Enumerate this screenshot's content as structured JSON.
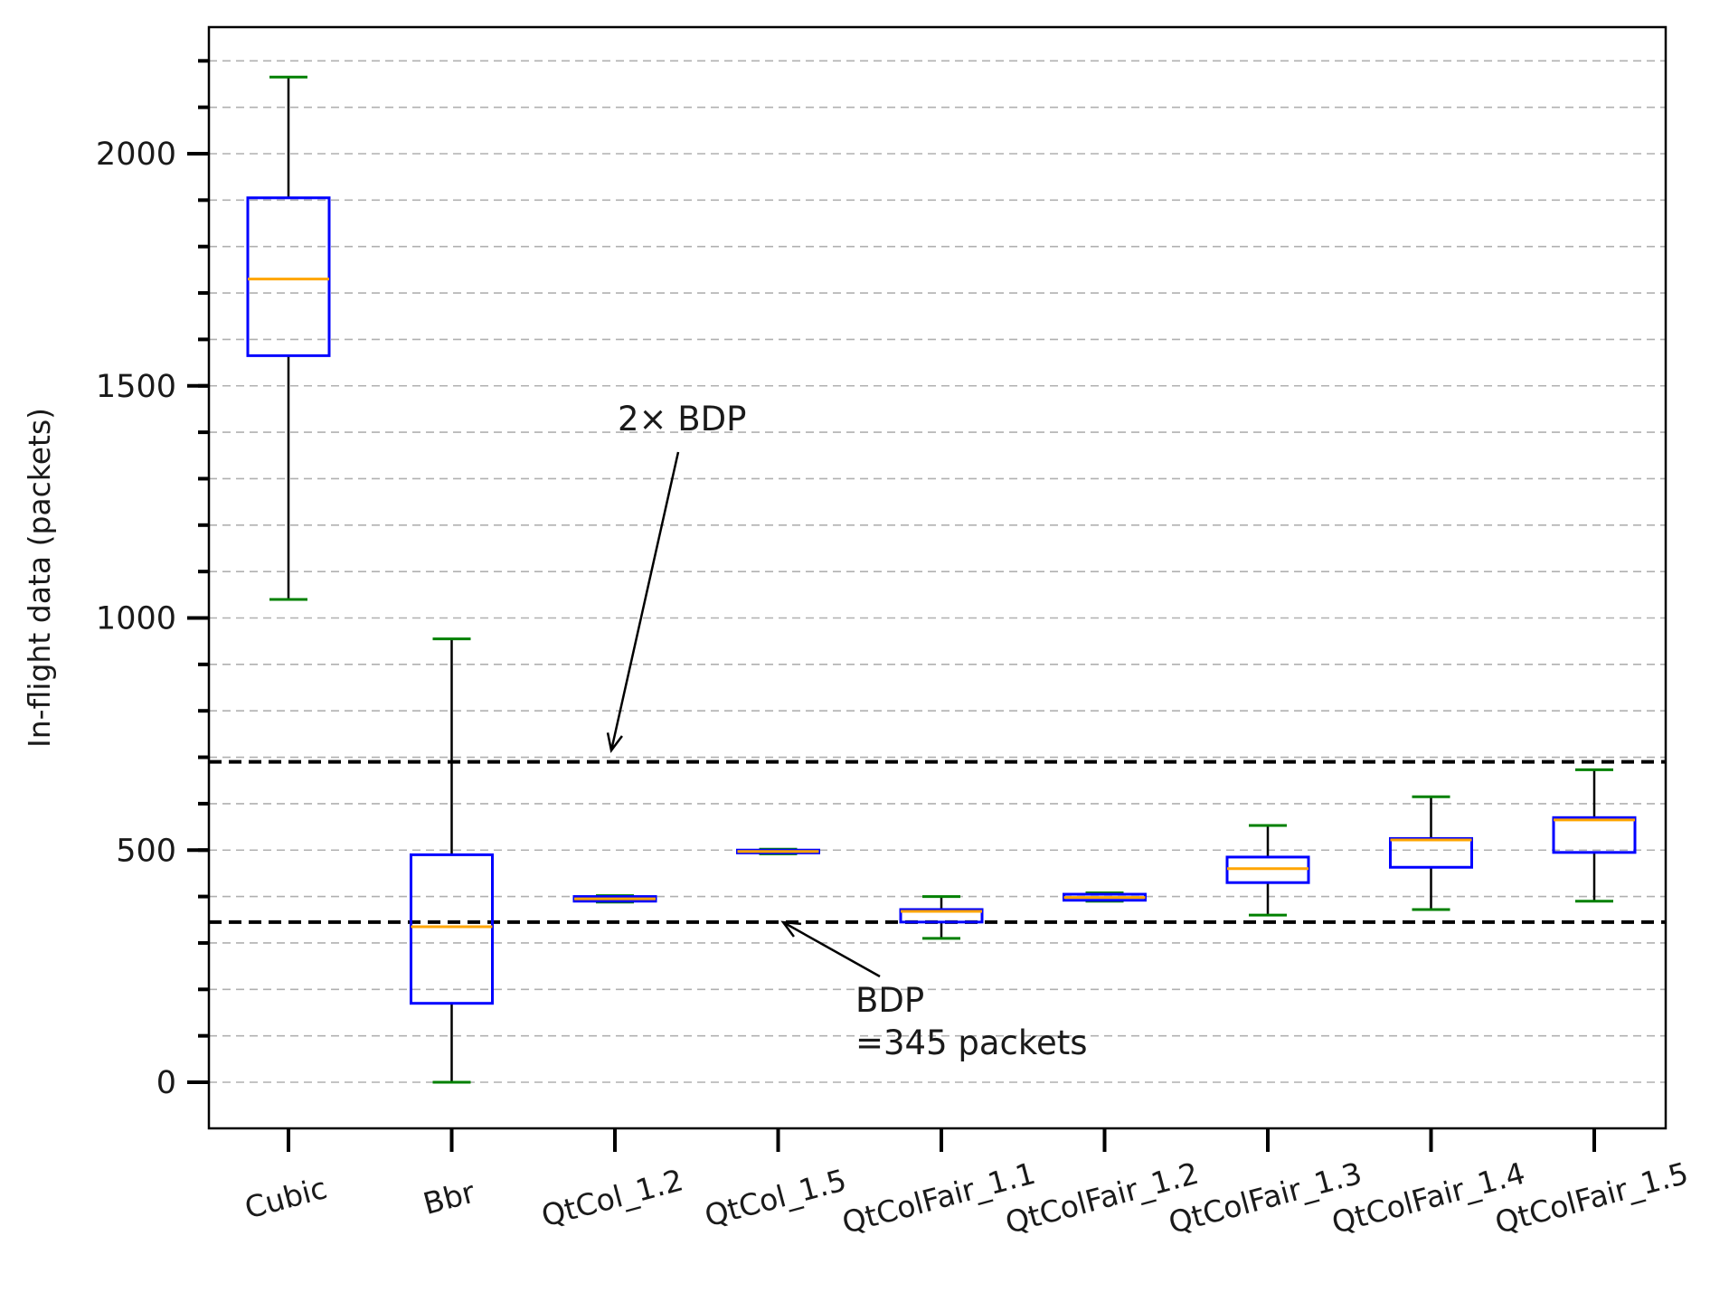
{
  "chart_data": {
    "type": "box",
    "title": "",
    "xlabel": "",
    "ylabel": "In-flight data (packets)",
    "ylim": [
      -100,
      2250
    ],
    "yticks_major": [
      0,
      500,
      1000,
      1500,
      2000
    ],
    "yticks_major_labels": [
      "0",
      "500",
      "1000",
      "1500",
      "2000"
    ],
    "yticks_minor_step": 100,
    "grid": "horizontal dashed at minor ticks",
    "categories": [
      "Cubic",
      "Bbr",
      "QtCol_1.2",
      "QtCol_1.5",
      "QtColFair_1.1",
      "QtColFair_1.2",
      "QtColFair_1.3",
      "QtColFair_1.4",
      "QtColFair_1.5"
    ],
    "boxes": [
      {
        "name": "Cubic",
        "whislo": 1040,
        "q1": 1565,
        "median": 1730,
        "q3": 1905,
        "whishi": 2165
      },
      {
        "name": "Bbr",
        "whislo": 0,
        "q1": 170,
        "median": 335,
        "q3": 490,
        "whishi": 955
      },
      {
        "name": "QtCol_1.2",
        "whislo": 388,
        "q1": 390,
        "median": 395,
        "q3": 400,
        "whishi": 402
      },
      {
        "name": "QtCol_1.5",
        "whislo": 492,
        "q1": 494,
        "median": 497,
        "q3": 500,
        "whishi": 502
      },
      {
        "name": "QtColFair_1.1",
        "whislo": 310,
        "q1": 345,
        "median": 368,
        "q3": 372,
        "whishi": 400
      },
      {
        "name": "QtColFair_1.2",
        "whislo": 390,
        "q1": 392,
        "median": 398,
        "q3": 405,
        "whishi": 408
      },
      {
        "name": "QtColFair_1.3",
        "whislo": 360,
        "q1": 430,
        "median": 460,
        "q3": 485,
        "whishi": 553
      },
      {
        "name": "QtColFair_1.4",
        "whislo": 372,
        "q1": 463,
        "median": 522,
        "q3": 525,
        "whishi": 615
      },
      {
        "name": "QtColFair_1.5",
        "whislo": 390,
        "q1": 495,
        "median": 565,
        "q3": 570,
        "whishi": 673
      }
    ],
    "reference_lines": [
      {
        "name": "BDP",
        "y": 345,
        "style": "dashed"
      },
      {
        "name": "2x BDP",
        "y": 690,
        "style": "dashed"
      }
    ],
    "annotations": [
      {
        "text": "2× BDP",
        "points_to": 690
      },
      {
        "text_lines": [
          "BDP",
          "=345 packets"
        ],
        "points_to": 345
      }
    ],
    "colors": {
      "box": "#0000ff",
      "median": "#ffa500",
      "whisker": "#000000",
      "cap": "#008000",
      "grid": "#b0b0b0",
      "reference": "#000000"
    }
  }
}
